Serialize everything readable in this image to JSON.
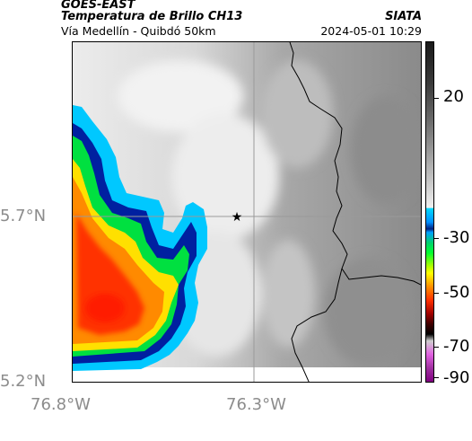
{
  "header": {
    "satellite": "GOES-EAST",
    "product": "Temperatura de Brillo CH13",
    "organization": "SIATA",
    "location": "Vía Medellín - Quibdó 50km",
    "datetime": "2024-05-01 10:29"
  },
  "axes": {
    "y_ticks": [
      "5.7°N",
      "5.2°N"
    ],
    "x_ticks": [
      "76.8°W",
      "76.3°W"
    ]
  },
  "colorbar": {
    "labels": [
      "20",
      "-30",
      "-50",
      "-70",
      "-90"
    ]
  },
  "map": {
    "marker": "star-icon",
    "colors": {
      "land_gray": "#9a9a9a",
      "cloud_white": "#f2f2f2",
      "cold_cyan": "#00c8ff",
      "deep_blue": "#0020a0",
      "green": "#00e040",
      "yellow": "#ffe000",
      "orange": "#ff7a00",
      "red": "#ff3000"
    }
  }
}
